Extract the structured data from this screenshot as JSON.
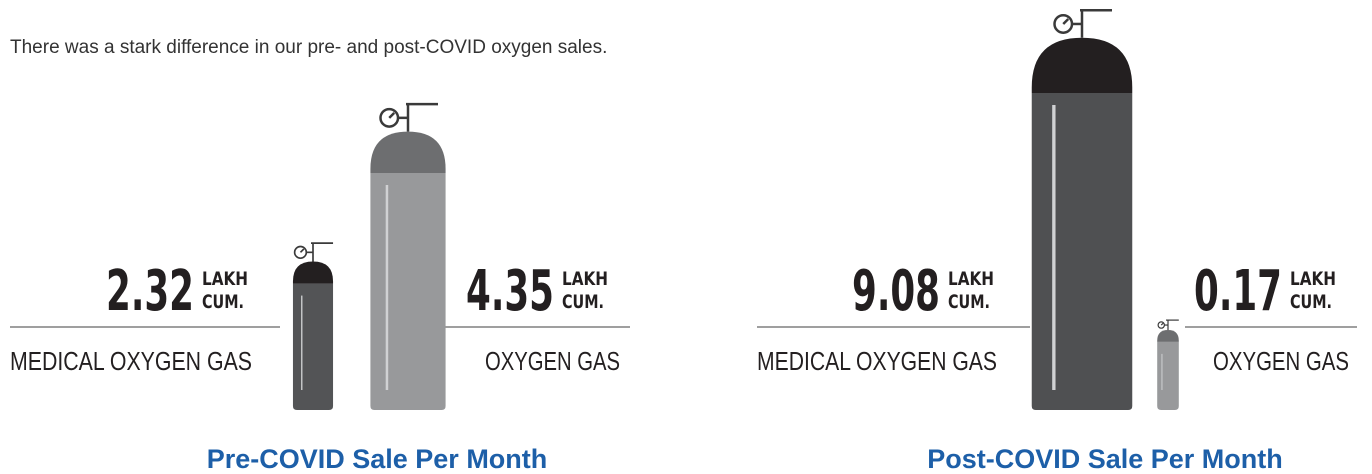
{
  "intro": "There was a stark difference in our pre- and post-COVID oxygen sales.",
  "chart_data": [
    {
      "type": "cylinder",
      "title": "Pre-COVID Sale Per Month",
      "categories": [
        "MEDICAL OXYGEN GAS",
        "OXYGEN GAS"
      ],
      "values": [
        2.32,
        4.35
      ],
      "unit": [
        "LAKH",
        "CUM."
      ],
      "colors": [
        {
          "body": "#535456",
          "dome": "#231f20"
        },
        {
          "body": "#98999b",
          "dome": "#6d6e70"
        }
      ]
    },
    {
      "type": "cylinder",
      "title": "Post-COVID Sale Per Month",
      "categories": [
        "MEDICAL OXYGEN GAS",
        "OXYGEN GAS"
      ],
      "values": [
        9.08,
        0.17
      ],
      "unit": [
        "LAKH",
        "CUM."
      ],
      "colors": [
        {
          "body": "#4f5052",
          "dome": "#231f20"
        },
        {
          "body": "#98999b",
          "dome": "#6d6e70"
        }
      ]
    }
  ]
}
